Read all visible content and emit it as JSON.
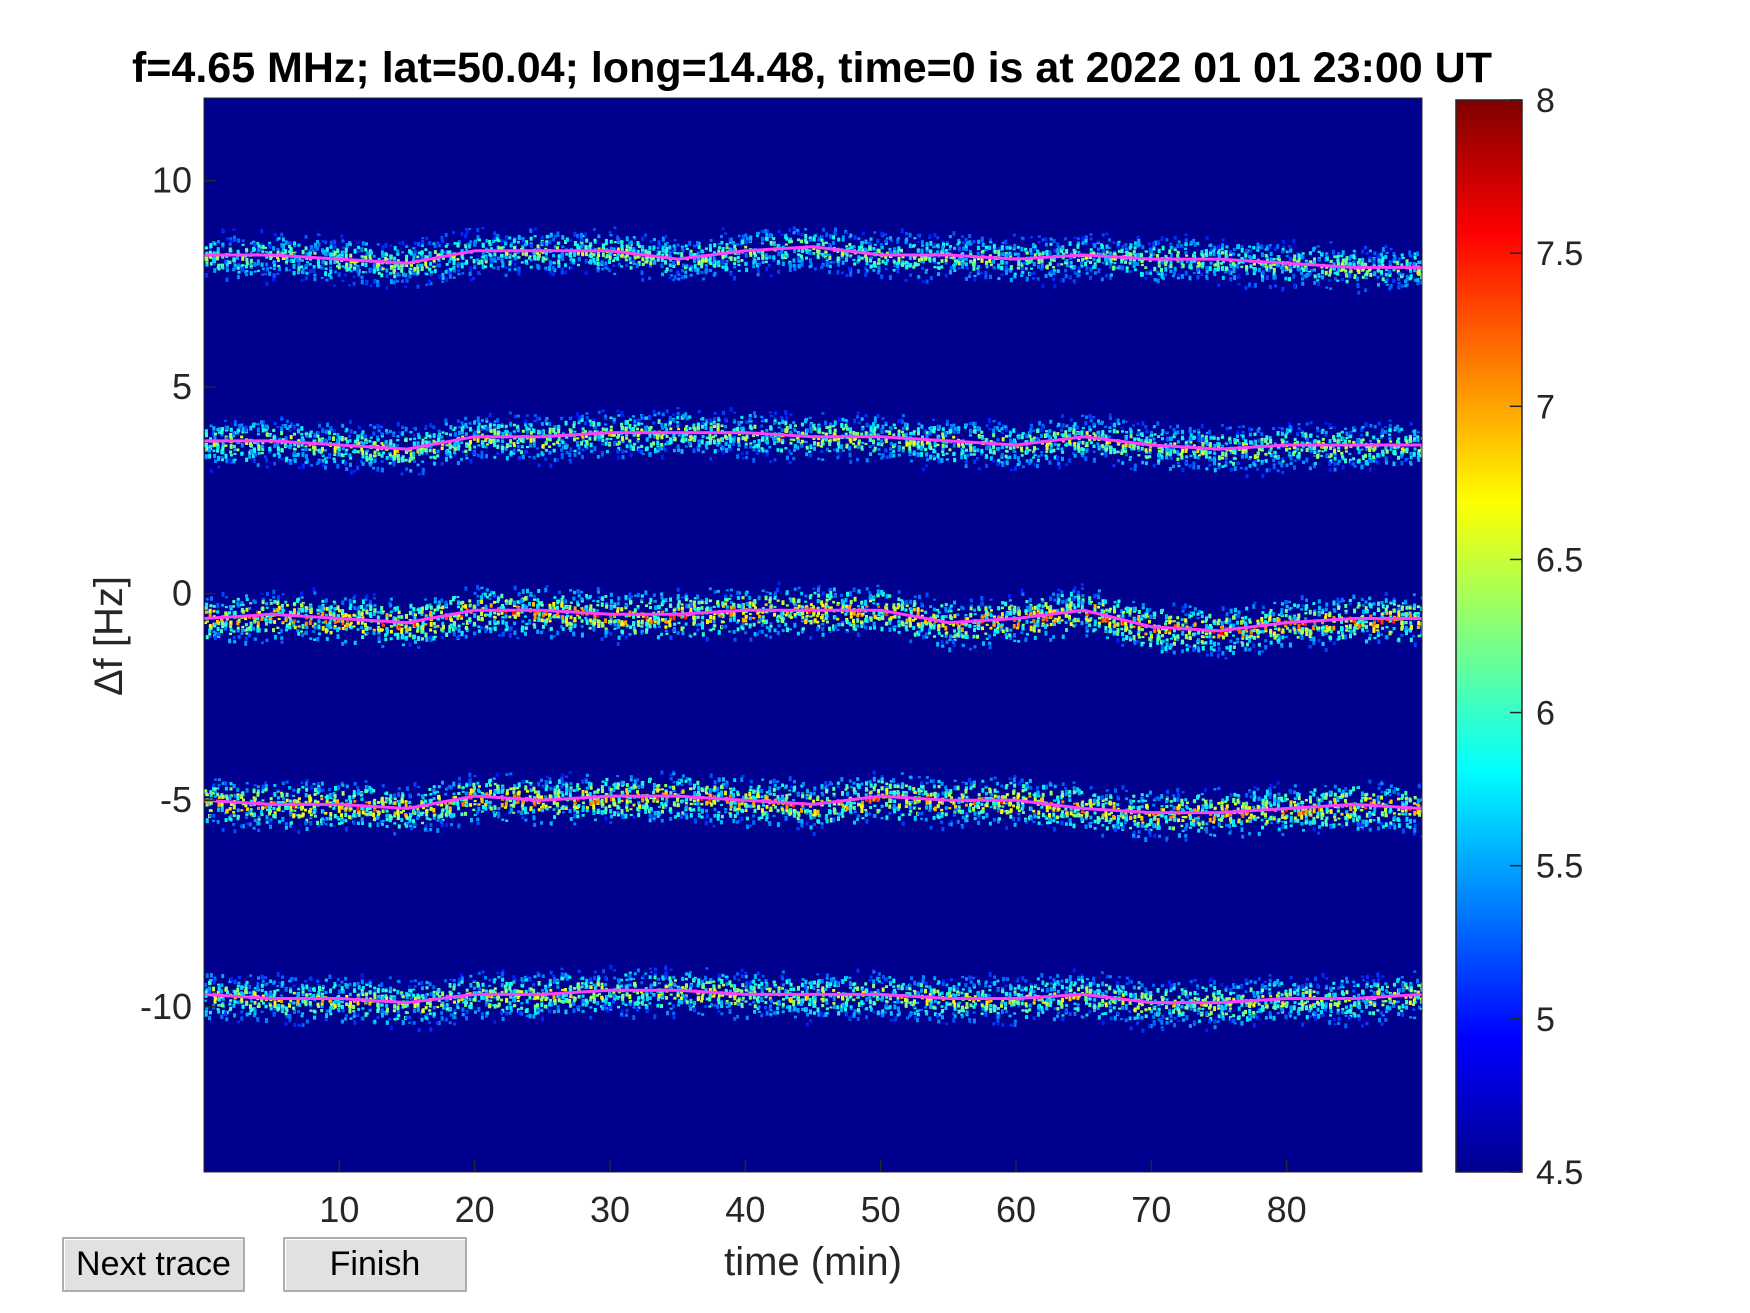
{
  "buttons": {
    "next_label": "Next trace",
    "finish_label": "Finish"
  },
  "colors": {
    "background": "#00008f",
    "trace_line": "#ff40ff",
    "colormap": "jet"
  },
  "chart_data": {
    "type": "heatmap",
    "title": "f=4.65 MHz;  lat=50.04; long=14.48, time=0 is at 2022 01 01 23:00 UT",
    "xlabel": "time (min)",
    "ylabel": "Δf [Hz]",
    "xlim": [
      0,
      90
    ],
    "ylim": [
      -14,
      12
    ],
    "xticks": [
      10,
      20,
      30,
      40,
      50,
      60,
      70,
      80
    ],
    "yticks": [
      10,
      5,
      0,
      -5,
      -10
    ],
    "colorbar": {
      "clim": [
        4.5,
        8
      ],
      "ticks": [
        "8",
        "7.5",
        "7",
        "6.5",
        "6",
        "5.5",
        "5",
        "4.5"
      ]
    },
    "grid": false,
    "series": [
      {
        "x": [
          0,
          5,
          10,
          15,
          20,
          25,
          30,
          35,
          40,
          45,
          50,
          55,
          60,
          65,
          70,
          75,
          80,
          85,
          90
        ],
        "y": [
          8.2,
          8.2,
          8.1,
          8.0,
          8.3,
          8.3,
          8.3,
          8.1,
          8.3,
          8.4,
          8.2,
          8.2,
          8.1,
          8.2,
          8.1,
          8.1,
          8.0,
          7.9,
          7.9
        ]
      },
      {
        "x": [
          0,
          5,
          10,
          15,
          20,
          25,
          30,
          35,
          40,
          45,
          50,
          55,
          60,
          65,
          70,
          75,
          80,
          85,
          90
        ],
        "y": [
          3.7,
          3.7,
          3.6,
          3.5,
          3.8,
          3.8,
          3.9,
          3.9,
          3.9,
          3.8,
          3.8,
          3.7,
          3.6,
          3.8,
          3.6,
          3.5,
          3.6,
          3.6,
          3.6
        ]
      },
      {
        "x": [
          0,
          5,
          10,
          15,
          20,
          25,
          30,
          35,
          40,
          45,
          50,
          55,
          60,
          65,
          70,
          75,
          80,
          85,
          90
        ],
        "y": [
          -0.6,
          -0.5,
          -0.6,
          -0.7,
          -0.4,
          -0.4,
          -0.5,
          -0.5,
          -0.4,
          -0.4,
          -0.4,
          -0.7,
          -0.6,
          -0.4,
          -0.8,
          -0.9,
          -0.7,
          -0.6,
          -0.6
        ]
      },
      {
        "x": [
          0,
          5,
          10,
          15,
          20,
          25,
          30,
          35,
          40,
          45,
          50,
          55,
          60,
          65,
          70,
          75,
          80,
          85,
          90
        ],
        "y": [
          -5.0,
          -5.1,
          -5.1,
          -5.2,
          -4.9,
          -5.0,
          -4.9,
          -4.9,
          -5.0,
          -5.1,
          -4.9,
          -5.0,
          -5.0,
          -5.2,
          -5.3,
          -5.3,
          -5.2,
          -5.1,
          -5.2
        ]
      },
      {
        "x": [
          0,
          5,
          10,
          15,
          20,
          25,
          30,
          35,
          40,
          45,
          50,
          55,
          60,
          65,
          70,
          75,
          80,
          85,
          90
        ],
        "y": [
          -9.7,
          -9.8,
          -9.8,
          -9.9,
          -9.7,
          -9.7,
          -9.6,
          -9.6,
          -9.7,
          -9.7,
          -9.7,
          -9.8,
          -9.8,
          -9.7,
          -9.9,
          -9.9,
          -9.8,
          -9.8,
          -9.7
        ]
      }
    ]
  }
}
